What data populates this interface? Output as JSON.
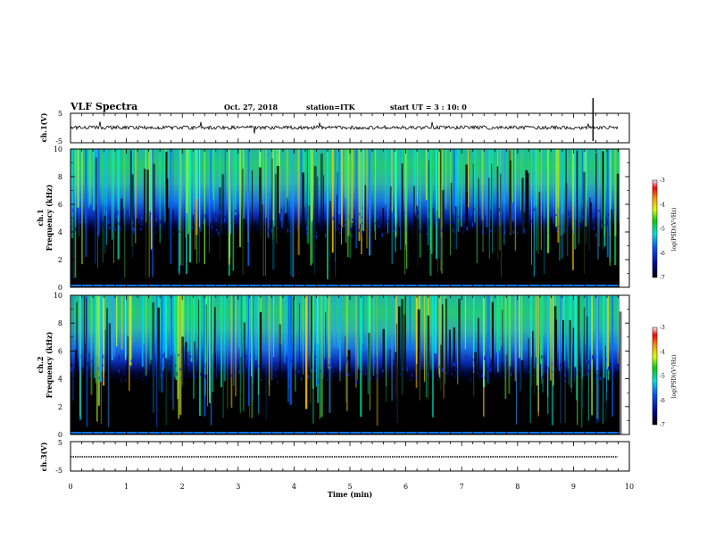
{
  "header": {
    "title": "VLF Spectra",
    "date": "Oct. 27, 2018",
    "station": "station=ITK",
    "start": "start  UT =   3  : 10: 0"
  },
  "chart_data": [
    {
      "type": "line",
      "panel": "ch1-waveform",
      "ylabel": "ch.1(V)",
      "ylim": [
        -5,
        5
      ],
      "yticks": [
        "5",
        "-5"
      ],
      "xlim": [
        0,
        10
      ]
    },
    {
      "type": "heatmap",
      "panel": "ch1-spectrogram",
      "ylabel": [
        "ch.1",
        "Frequency (kHz)"
      ],
      "ylim": [
        0,
        10
      ],
      "yticks": [
        "0",
        "2",
        "4",
        "6",
        "8",
        "10"
      ],
      "xlim": [
        0,
        10
      ],
      "colorbar": {
        "label": "log(PSD)(V²/Hz)",
        "range": [
          -7,
          -3
        ],
        "ticks": [
          "-3",
          "-4",
          "-5",
          "-6",
          "-7"
        ]
      }
    },
    {
      "type": "heatmap",
      "panel": "ch2-spectrogram",
      "ylabel": [
        "ch.2",
        "Frequency (kHz)"
      ],
      "ylim": [
        0,
        10
      ],
      "yticks": [
        "0",
        "2",
        "4",
        "6",
        "8",
        "10"
      ],
      "xlim": [
        0,
        10
      ],
      "colorbar": {
        "label": "log(PSD)(V²/Hz)",
        "range": [
          -7,
          -3
        ],
        "ticks": [
          "-3",
          "-4",
          "-5",
          "-6",
          "-7"
        ]
      }
    },
    {
      "type": "line",
      "panel": "ch3-waveform",
      "ylabel": "ch.3(V)",
      "ylim": [
        -5,
        5
      ],
      "yticks": [
        "5",
        "-5"
      ],
      "xlim": [
        0,
        10
      ],
      "xlabel": "Time (min)",
      "xticks": [
        "0",
        "1",
        "2",
        "3",
        "4",
        "5",
        "6",
        "7",
        "8",
        "9",
        "10"
      ]
    }
  ]
}
